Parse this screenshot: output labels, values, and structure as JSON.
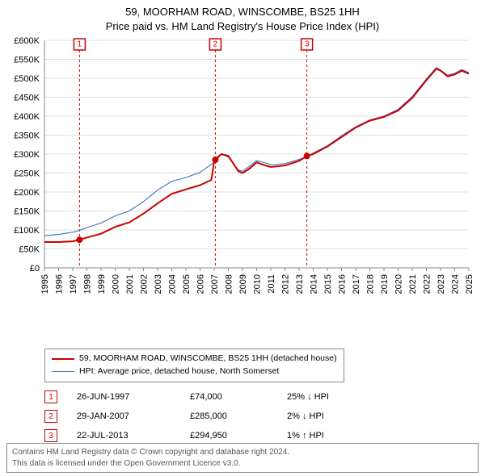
{
  "title": {
    "line1": "59, MOORHAM ROAD, WINSCOMBE, BS25 1HH",
    "line2": "Price paid vs. HM Land Registry's House Price Index (HPI)"
  },
  "chart": {
    "type": "line",
    "background_color": "#ffffff",
    "grid_color": "#e0e0e0",
    "axis_color": "#888888",
    "x": {
      "min": 1995,
      "max": 2025,
      "tick_step": 1
    },
    "y": {
      "min": 0,
      "max": 600000,
      "tick_step": 50000,
      "tick_prefix": "£",
      "tick_suffix_k": "K"
    },
    "series": [
      {
        "id": "property",
        "label": "59, MOORHAM ROAD, WINSCOMBE, BS25 1HH (detached house)",
        "color": "#cc0000",
        "line_width": 2,
        "points": [
          [
            1995.0,
            68000
          ],
          [
            1996.0,
            68000
          ],
          [
            1997.0,
            70000
          ],
          [
            1997.48,
            74000
          ],
          [
            1998.0,
            80000
          ],
          [
            1999.0,
            90000
          ],
          [
            2000.0,
            108000
          ],
          [
            2001.0,
            120000
          ],
          [
            2002.0,
            143000
          ],
          [
            2003.0,
            170000
          ],
          [
            2004.0,
            195000
          ],
          [
            2005.0,
            207000
          ],
          [
            2006.0,
            218000
          ],
          [
            2006.8,
            232000
          ],
          [
            2007.0,
            282000
          ],
          [
            2007.08,
            285000
          ],
          [
            2007.5,
            300000
          ],
          [
            2008.0,
            295000
          ],
          [
            2008.7,
            255000
          ],
          [
            2009.0,
            250000
          ],
          [
            2009.5,
            262000
          ],
          [
            2010.0,
            278000
          ],
          [
            2010.6,
            270000
          ],
          [
            2011.0,
            266000
          ],
          [
            2012.0,
            270000
          ],
          [
            2013.0,
            282000
          ],
          [
            2013.55,
            294950
          ],
          [
            2014.0,
            300000
          ],
          [
            2015.0,
            320000
          ],
          [
            2016.0,
            345000
          ],
          [
            2017.0,
            370000
          ],
          [
            2018.0,
            388000
          ],
          [
            2019.0,
            398000
          ],
          [
            2020.0,
            415000
          ],
          [
            2021.0,
            448000
          ],
          [
            2022.0,
            495000
          ],
          [
            2022.7,
            525000
          ],
          [
            2023.0,
            520000
          ],
          [
            2023.5,
            505000
          ],
          [
            2024.0,
            510000
          ],
          [
            2024.5,
            520000
          ],
          [
            2025.0,
            512000
          ]
        ]
      },
      {
        "id": "hpi",
        "label": "HPI: Average price, detached house, North Somerset",
        "color": "#4a7bbf",
        "line_width": 1.2,
        "points": [
          [
            1995.0,
            85000
          ],
          [
            1996.0,
            88000
          ],
          [
            1997.0,
            94000
          ],
          [
            1997.48,
            99000
          ],
          [
            1998.0,
            106000
          ],
          [
            1999.0,
            118000
          ],
          [
            2000.0,
            137000
          ],
          [
            2001.0,
            150000
          ],
          [
            2002.0,
            175000
          ],
          [
            2003.0,
            205000
          ],
          [
            2004.0,
            228000
          ],
          [
            2005.0,
            238000
          ],
          [
            2006.0,
            252000
          ],
          [
            2007.0,
            278000
          ],
          [
            2007.08,
            290000
          ],
          [
            2007.5,
            300000
          ],
          [
            2008.0,
            292000
          ],
          [
            2008.7,
            258000
          ],
          [
            2009.0,
            255000
          ],
          [
            2009.5,
            268000
          ],
          [
            2010.0,
            283000
          ],
          [
            2010.6,
            277000
          ],
          [
            2011.0,
            272000
          ],
          [
            2012.0,
            275000
          ],
          [
            2013.0,
            286000
          ],
          [
            2013.55,
            292000
          ],
          [
            2014.0,
            303000
          ],
          [
            2015.0,
            322000
          ],
          [
            2016.0,
            348000
          ],
          [
            2017.0,
            372000
          ],
          [
            2018.0,
            390000
          ],
          [
            2019.0,
            400000
          ],
          [
            2020.0,
            418000
          ],
          [
            2021.0,
            452000
          ],
          [
            2022.0,
            498000
          ],
          [
            2022.7,
            528000
          ],
          [
            2023.0,
            522000
          ],
          [
            2023.5,
            508000
          ],
          [
            2024.0,
            513000
          ],
          [
            2024.5,
            523000
          ],
          [
            2025.0,
            515000
          ]
        ]
      }
    ],
    "markers": [
      {
        "idx": "1",
        "x": 1997.48,
        "y": 74000,
        "color": "#cc0000"
      },
      {
        "idx": "2",
        "x": 2007.08,
        "y": 285000,
        "color": "#cc0000"
      },
      {
        "idx": "3",
        "x": 2013.55,
        "y": 294950,
        "color": "#cc0000"
      }
    ],
    "ref_line_color": "#cc0000",
    "marker_radius": 4,
    "ref_box": {
      "w": 14,
      "h": 14,
      "stroke": "#cc0000",
      "fill": "#ffffff",
      "font_size": 10
    }
  },
  "legend": {
    "items": [
      {
        "series": "property",
        "label": "59, MOORHAM ROAD, WINSCOMBE, BS25 1HH (detached house)"
      },
      {
        "series": "hpi",
        "label": "HPI: Average price, detached house, North Somerset"
      }
    ]
  },
  "transactions": [
    {
      "idx": "1",
      "date": "26-JUN-1997",
      "price": "£74,000",
      "delta": "25% ↓ HPI"
    },
    {
      "idx": "2",
      "date": "29-JAN-2007",
      "price": "£285,000",
      "delta": "2% ↓ HPI"
    },
    {
      "idx": "3",
      "date": "22-JUL-2013",
      "price": "£294,950",
      "delta": "1% ↑ HPI"
    }
  ],
  "footer": {
    "line1": "Contains HM Land Registry data © Crown copyright and database right 2024.",
    "line2": "This data is licensed under the Open Government Licence v3.0."
  }
}
